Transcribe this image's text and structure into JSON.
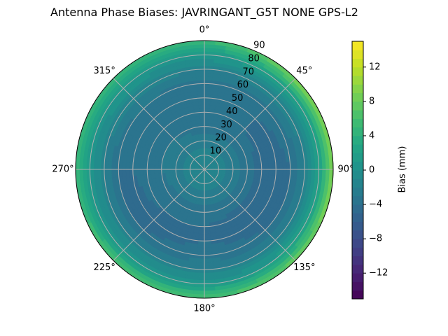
{
  "chart_data": {
    "type": "heatmap",
    "projection": "polar",
    "title": "Antenna Phase Biases: JAVRINGANT_G5T  NONE GPS-L2",
    "theta_zero": "top",
    "theta_direction": "clockwise",
    "theta_tick_labels": [
      "0°",
      "45°",
      "90°",
      "135°",
      "180°",
      "225°",
      "270°",
      "315°"
    ],
    "r_tick_labels": [
      "10",
      "20",
      "30",
      "40",
      "50",
      "60",
      "70",
      "80",
      "90"
    ],
    "r_range": [
      0,
      90
    ],
    "grid": true,
    "azimuth_deg": [
      0,
      45,
      90,
      135,
      180,
      225,
      270,
      315
    ],
    "zenith_deg": [
      0,
      10,
      20,
      30,
      40,
      50,
      60,
      70,
      80,
      90
    ],
    "values_mm": [
      [
        -1,
        -1.5,
        -2.5,
        -3.5,
        -4,
        -4,
        -3.5,
        -2,
        1,
        5
      ],
      [
        -1,
        -1.5,
        -2.5,
        -3.5,
        -4,
        -4,
        -3.5,
        -1.5,
        2,
        9
      ],
      [
        -1,
        -1.5,
        -2.5,
        -3.5,
        -4.5,
        -4.5,
        -4,
        -2,
        2,
        10
      ],
      [
        -1,
        -1.5,
        -2.5,
        -3.5,
        -4.5,
        -4.5,
        -4,
        -2,
        1.5,
        8
      ],
      [
        -1,
        -1.5,
        -2.5,
        -3.5,
        -4,
        -4,
        -3.5,
        -2,
        1,
        6
      ],
      [
        -1,
        -1.5,
        -2.5,
        -3.5,
        -4,
        -4.5,
        -4,
        -2,
        1,
        6
      ],
      [
        -1,
        -1.5,
        -2.5,
        -3,
        -3.5,
        -4,
        -4,
        -2,
        1,
        5
      ],
      [
        -1,
        -1.5,
        -2.5,
        -3,
        -3.5,
        -3.5,
        -3,
        -1.5,
        1,
        5
      ]
    ],
    "colormap": "viridis",
    "colorbar": {
      "label": "Bias (mm)",
      "range": [
        -15,
        15
      ],
      "level_step": 1,
      "tick_values": [
        -12,
        -8,
        -4,
        0,
        4,
        8,
        12
      ],
      "tick_labels": [
        "−12",
        "−8",
        "−4",
        "0",
        "4",
        "8",
        "12"
      ]
    }
  }
}
